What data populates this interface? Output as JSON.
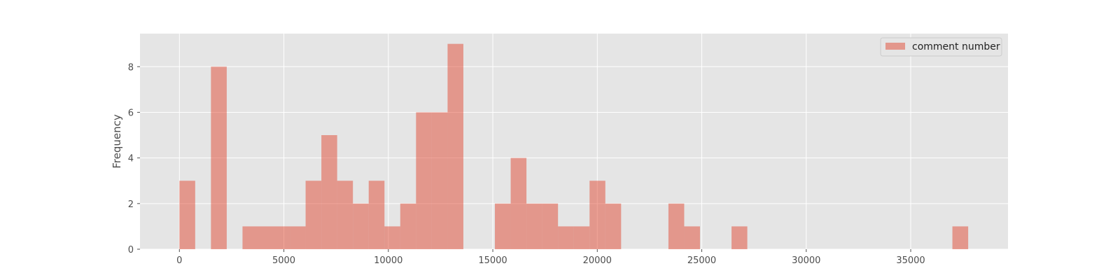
{
  "chart_data": {
    "type": "bar",
    "subtype": "histogram",
    "title": "",
    "xlabel": "",
    "ylabel": "Frequency",
    "xlim": [
      -1886,
      39656
    ],
    "ylim": [
      0,
      9.45
    ],
    "xticks": [
      0,
      5000,
      10000,
      15000,
      20000,
      25000,
      30000,
      35000
    ],
    "yticks": [
      0,
      2,
      4,
      6,
      8
    ],
    "grid": true,
    "legend_position": "upper-right",
    "bin_start": 0,
    "bin_width": 755,
    "series": [
      {
        "name": "comment number",
        "color": "#E24A33",
        "alpha": 0.5,
        "values": [
          3,
          0,
          8,
          0,
          1,
          1,
          1,
          1,
          3,
          5,
          3,
          2,
          3,
          1,
          2,
          6,
          6,
          9,
          0,
          0,
          2,
          4,
          2,
          2,
          1,
          1,
          3,
          2,
          0,
          0,
          0,
          2,
          1,
          0,
          0,
          1,
          0,
          0,
          0,
          0,
          0,
          0,
          0,
          0,
          0,
          0,
          0,
          0,
          0,
          1
        ]
      }
    ],
    "colors": {
      "plot_background": "#E5E5E5",
      "grid": "#FFFFFF",
      "tick_text": "#4D4D4D"
    }
  }
}
